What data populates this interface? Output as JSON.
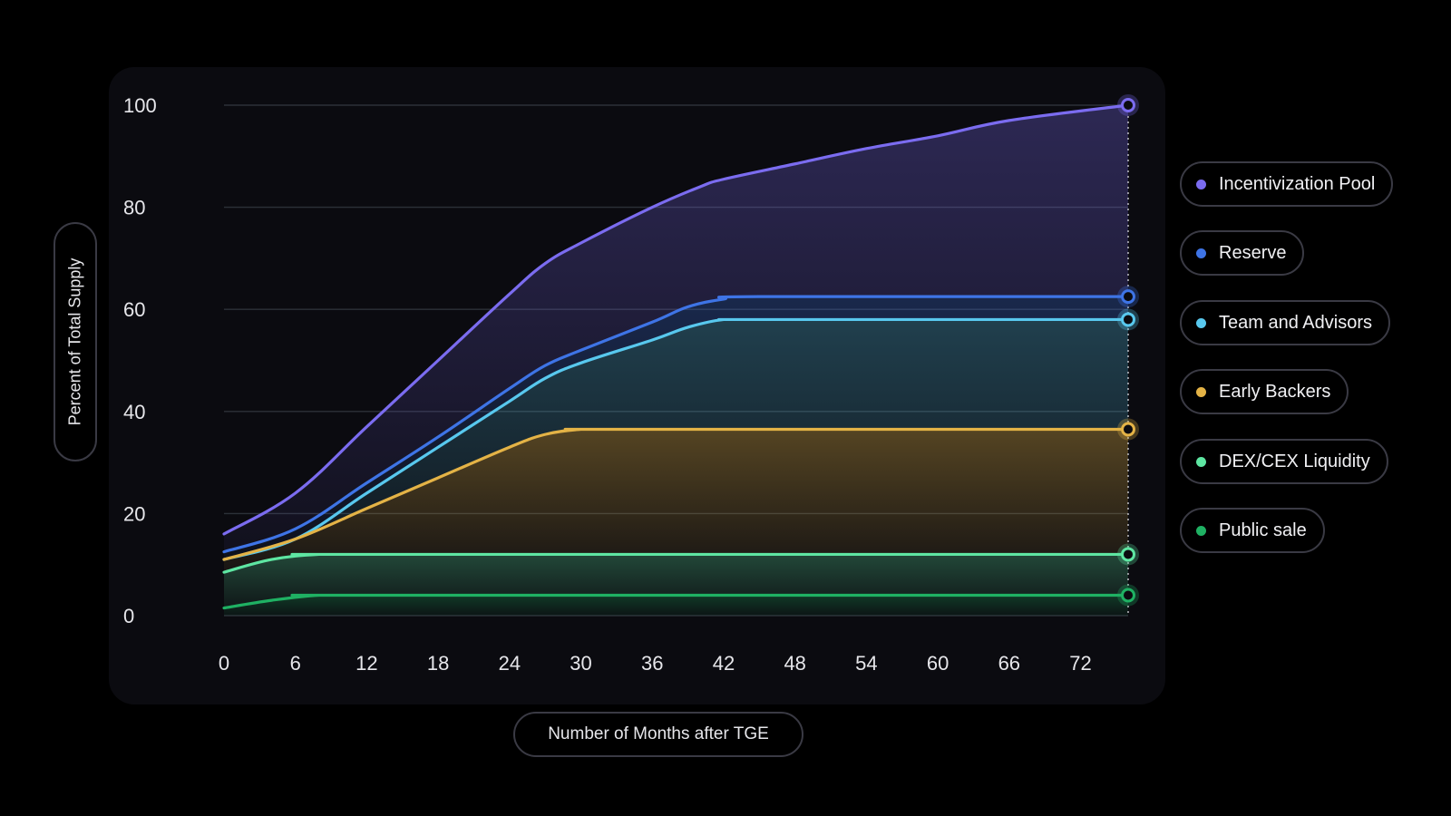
{
  "chart_data": {
    "type": "area",
    "title": "",
    "xlabel": "Number of Months after TGE",
    "ylabel": "Percent of Total Supply",
    "xlim": [
      0,
      76
    ],
    "ylim": [
      0,
      100
    ],
    "x_ticks": [
      "0",
      "6",
      "12",
      "18",
      "24",
      "30",
      "36",
      "42",
      "48",
      "54",
      "60",
      "66",
      "72"
    ],
    "y_ticks": [
      "0",
      "20",
      "40",
      "60",
      "80",
      "100"
    ],
    "grid": "horizontal",
    "legend_position": "right",
    "series": [
      {
        "name": "Incentivization Pool",
        "color": "#7b6cf0",
        "points": [
          [
            0,
            16
          ],
          [
            6,
            24
          ],
          [
            12,
            37
          ],
          [
            18,
            50
          ],
          [
            24,
            63
          ],
          [
            27,
            69
          ],
          [
            30,
            73
          ],
          [
            36,
            80
          ],
          [
            40,
            84
          ],
          [
            42,
            85.5
          ],
          [
            48,
            88.5
          ],
          [
            54,
            91.5
          ],
          [
            60,
            94
          ],
          [
            66,
            97
          ],
          [
            76,
            100
          ]
        ]
      },
      {
        "name": "Reserve",
        "color": "#3e74e6",
        "points": [
          [
            0,
            12.5
          ],
          [
            6,
            17
          ],
          [
            12,
            26
          ],
          [
            18,
            35
          ],
          [
            24,
            44.5
          ],
          [
            27,
            49
          ],
          [
            30,
            52
          ],
          [
            36,
            57.5
          ],
          [
            39,
            60.5
          ],
          [
            42,
            62
          ],
          [
            45,
            62.5
          ],
          [
            76,
            62.5
          ]
        ]
      },
      {
        "name": "Team and Advisors",
        "color": "#58c8ee",
        "points": [
          [
            0,
            11
          ],
          [
            6,
            15
          ],
          [
            12,
            24
          ],
          [
            18,
            33
          ],
          [
            24,
            42
          ],
          [
            27,
            46.5
          ],
          [
            30,
            49.5
          ],
          [
            36,
            54
          ],
          [
            39,
            56.5
          ],
          [
            42,
            58
          ],
          [
            45,
            58
          ],
          [
            76,
            58
          ]
        ]
      },
      {
        "name": "Early Backers",
        "color": "#e4b346",
        "points": [
          [
            0,
            11
          ],
          [
            6,
            15
          ],
          [
            12,
            21
          ],
          [
            18,
            27
          ],
          [
            24,
            33
          ],
          [
            27,
            35.5
          ],
          [
            30,
            36.5
          ],
          [
            33,
            36.5
          ],
          [
            76,
            36.5
          ]
        ]
      },
      {
        "name": "DEX/CEX Liquidity",
        "color": "#5ee6a2",
        "points": [
          [
            0,
            8.5
          ],
          [
            4,
            11
          ],
          [
            8,
            12
          ],
          [
            12,
            12
          ],
          [
            76,
            12
          ]
        ]
      },
      {
        "name": "Public sale",
        "color": "#1fb163",
        "points": [
          [
            0,
            1.5
          ],
          [
            4,
            3
          ],
          [
            8,
            4
          ],
          [
            12,
            4
          ],
          [
            76,
            4
          ]
        ]
      }
    ]
  },
  "legend": [
    {
      "label": "Incentivization Pool",
      "color": "#7b6cf0"
    },
    {
      "label": "Reserve",
      "color": "#3e74e6"
    },
    {
      "label": "Team and Advisors",
      "color": "#58c8ee"
    },
    {
      "label": "Early Backers",
      "color": "#e4b346"
    },
    {
      "label": "DEX/CEX Liquidity",
      "color": "#5ee6a2"
    },
    {
      "label": "Public sale",
      "color": "#1fb163"
    }
  ]
}
